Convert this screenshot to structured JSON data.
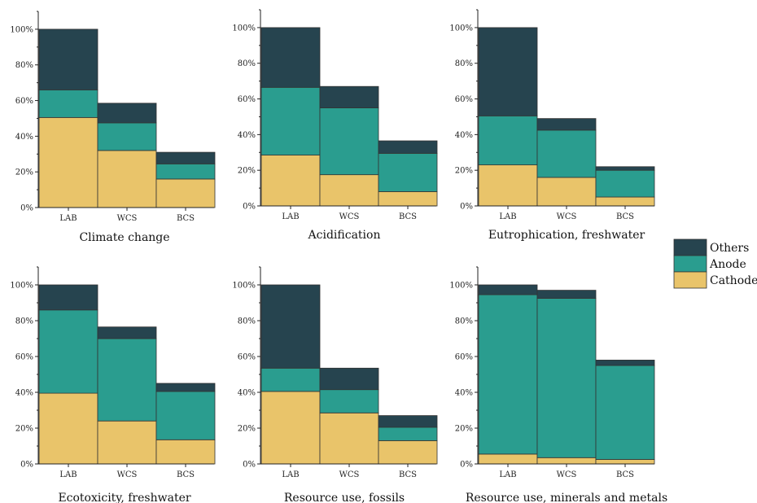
{
  "chart_data": {
    "type": "bar",
    "stacked": true,
    "variable_width": true,
    "categories": [
      "LAB",
      "WCS",
      "BCS"
    ],
    "category_widths": [
      1,
      1,
      1
    ],
    "ylim": [
      0,
      110
    ],
    "yticks": [
      "0%",
      "20%",
      "40%",
      "60%",
      "80%",
      "100%"
    ],
    "ytick_values": [
      0,
      20,
      40,
      60,
      80,
      100
    ],
    "legend": {
      "placement": "right",
      "items": [
        {
          "name": "Others",
          "color": "#26444f"
        },
        {
          "name": "Anode",
          "color": "#2a9d8f"
        },
        {
          "name": "Cathode",
          "color": "#e9c46a"
        }
      ]
    },
    "panels": [
      {
        "title": "Climate change",
        "series": [
          {
            "name": "Cathode",
            "values": [
              50.5,
              32,
              16
            ]
          },
          {
            "name": "Anode",
            "values": [
              15.5,
              15.5,
              8.5
            ]
          },
          {
            "name": "Others",
            "values": [
              34,
              11,
              6.5
            ]
          }
        ]
      },
      {
        "title": "Acidification",
        "series": [
          {
            "name": "Cathode",
            "values": [
              28.5,
              17.5,
              8
            ]
          },
          {
            "name": "Anode",
            "values": [
              38,
              37.5,
              21.5
            ]
          },
          {
            "name": "Others",
            "values": [
              33.5,
              12,
              7
            ]
          }
        ]
      },
      {
        "title": "Eutrophication, freshwater",
        "series": [
          {
            "name": "Cathode",
            "values": [
              23,
              16,
              5
            ]
          },
          {
            "name": "Anode",
            "values": [
              27.5,
              26.5,
              15
            ]
          },
          {
            "name": "Others",
            "values": [
              49.5,
              6.5,
              2
            ]
          }
        ]
      },
      {
        "title": "Ecotoxicity, freshwater",
        "series": [
          {
            "name": "Cathode",
            "values": [
              39.5,
              24,
              13.5
            ]
          },
          {
            "name": "Anode",
            "values": [
              46.5,
              46,
              27
            ]
          },
          {
            "name": "Others",
            "values": [
              14,
              6.5,
              4.5
            ]
          }
        ]
      },
      {
        "title": "Resource use, fossils",
        "series": [
          {
            "name": "Cathode",
            "values": [
              40.5,
              28.5,
              13
            ]
          },
          {
            "name": "Anode",
            "values": [
              13,
              13,
              7.5
            ]
          },
          {
            "name": "Others",
            "values": [
              46.5,
              12,
              6.5
            ]
          }
        ]
      },
      {
        "title": "Resource use, minerals and metals",
        "series": [
          {
            "name": "Cathode",
            "values": [
              5.5,
              3.5,
              2.5
            ]
          },
          {
            "name": "Anode",
            "values": [
              89,
              89,
              52.5
            ]
          },
          {
            "name": "Others",
            "values": [
              5.5,
              4.5,
              3
            ]
          }
        ]
      }
    ]
  }
}
